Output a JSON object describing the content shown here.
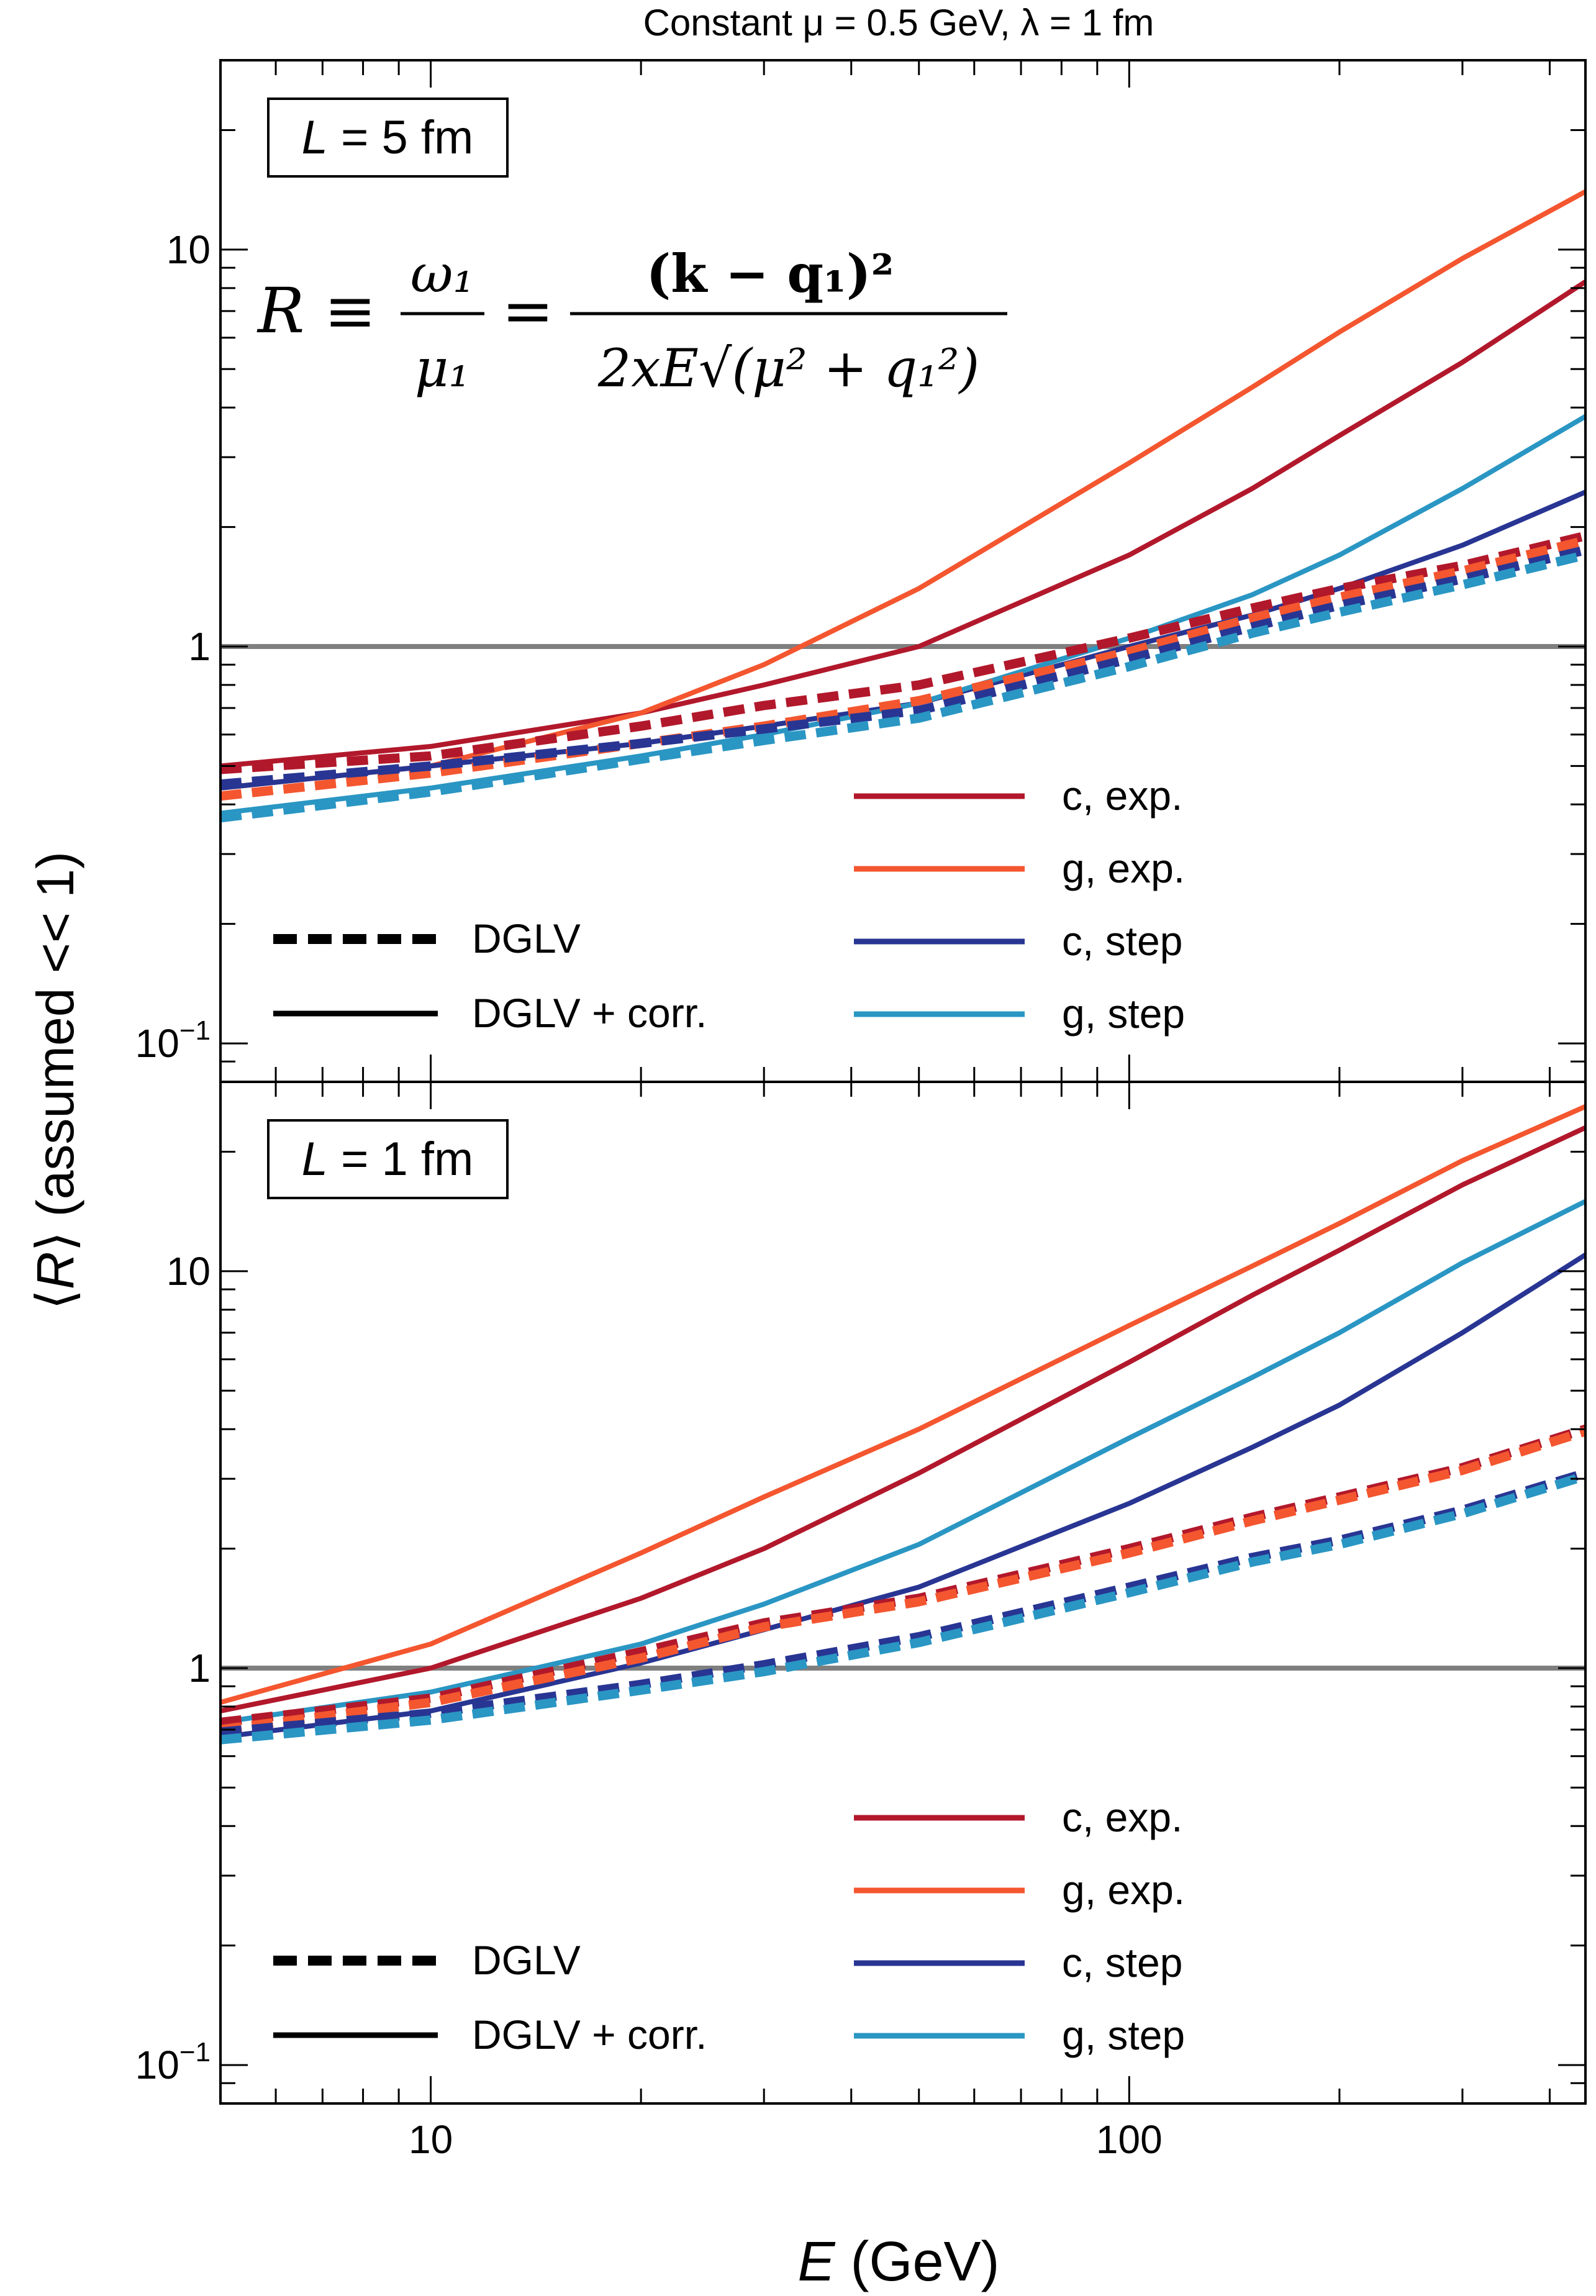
{
  "title": "Constant μ = 0.5 GeV, λ = 1 fm",
  "xlabel": {
    "italic": "E",
    "rest": " (GeV)"
  },
  "ylabel": {
    "pre": "⟨",
    "italic": "R",
    "post": "⟩ (assumed << 1)"
  },
  "x_ticks": [
    "10",
    "100"
  ],
  "y_ticks": {
    "ten": "10",
    "one": "1",
    "tenth_base": "10",
    "tenth_exp": "−1"
  },
  "formula": {
    "lhs": "R ≡",
    "num1": "ω₁",
    "den1": "μ₁",
    "eq": "=",
    "num2": "(k − q₁)²",
    "den2": "2xE√(μ² + q₁²)"
  },
  "legend_style": [
    {
      "label": "DGLV",
      "dash": true
    },
    {
      "label": "DGLV + corr.",
      "dash": false
    }
  ],
  "legend_series": [
    {
      "label": "c, exp.",
      "color": "#b2182b"
    },
    {
      "label": "g, exp.",
      "color": "#f4562f"
    },
    {
      "label": "c, step",
      "color": "#283593"
    },
    {
      "label": "g, step",
      "color": "#2a96c3"
    }
  ],
  "chart_data": [
    {
      "type": "line",
      "panel_label": {
        "italic": "L",
        "rest": " = 5 fm"
      },
      "x_scale": "log",
      "y_scale": "log",
      "xlim": [
        5,
        450
      ],
      "ylim": [
        0.08,
        30
      ],
      "reference_line": 1,
      "x": [
        5,
        10,
        20,
        30,
        50,
        100,
        150,
        200,
        300,
        450
      ],
      "series": [
        {
          "label": "c, exp.",
          "style": "DGLV + corr.",
          "color": "#b2182b",
          "values": [
            0.5,
            0.56,
            0.68,
            0.8,
            1.0,
            1.7,
            2.5,
            3.4,
            5.2,
            8.3
          ]
        },
        {
          "label": "g, exp.",
          "style": "DGLV + corr.",
          "color": "#f4562f",
          "values": [
            0.44,
            0.5,
            0.68,
            0.9,
            1.4,
            2.9,
            4.5,
            6.2,
            9.5,
            14
          ]
        },
        {
          "label": "c, step",
          "style": "DGLV + corr.",
          "color": "#283593",
          "values": [
            0.44,
            0.5,
            0.57,
            0.63,
            0.72,
            1.0,
            1.2,
            1.4,
            1.8,
            2.45
          ]
        },
        {
          "label": "g, step",
          "style": "DGLV + corr.",
          "color": "#2a96c3",
          "values": [
            0.38,
            0.44,
            0.53,
            0.6,
            0.72,
            1.05,
            1.35,
            1.7,
            2.5,
            3.8
          ]
        },
        {
          "label": "c, exp.",
          "style": "DGLV",
          "color": "#b2182b",
          "values": [
            0.49,
            0.53,
            0.63,
            0.71,
            0.8,
            1.05,
            1.25,
            1.4,
            1.6,
            1.9
          ]
        },
        {
          "label": "g, exp.",
          "style": "DGLV",
          "color": "#f4562f",
          "values": [
            0.42,
            0.48,
            0.57,
            0.63,
            0.73,
            0.97,
            1.18,
            1.33,
            1.55,
            1.85
          ]
        },
        {
          "label": "c, step",
          "style": "DGLV",
          "color": "#283593",
          "values": [
            0.45,
            0.5,
            0.57,
            0.62,
            0.69,
            0.93,
            1.12,
            1.27,
            1.48,
            1.75
          ]
        },
        {
          "label": "g, step",
          "style": "DGLV",
          "color": "#2a96c3",
          "values": [
            0.37,
            0.43,
            0.52,
            0.58,
            0.66,
            0.89,
            1.08,
            1.22,
            1.43,
            1.7
          ]
        }
      ]
    },
    {
      "type": "line",
      "panel_label": {
        "italic": "L",
        "rest": " = 1 fm"
      },
      "x_scale": "log",
      "y_scale": "log",
      "xlim": [
        5,
        450
      ],
      "ylim": [
        0.08,
        30
      ],
      "reference_line": 1,
      "x": [
        5,
        10,
        20,
        30,
        50,
        100,
        150,
        200,
        300,
        450
      ],
      "series": [
        {
          "label": "c, exp.",
          "style": "DGLV + corr.",
          "color": "#b2182b",
          "values": [
            0.78,
            1.0,
            1.5,
            2.0,
            3.1,
            5.9,
            8.7,
            11.3,
            16.5,
            23
          ]
        },
        {
          "label": "g, exp.",
          "style": "DGLV + corr.",
          "color": "#f4562f",
          "values": [
            0.82,
            1.15,
            1.95,
            2.7,
            4.0,
            7.3,
            10.3,
            13.2,
            19.0,
            26
          ]
        },
        {
          "label": "c, step",
          "style": "DGLV + corr.",
          "color": "#283593",
          "values": [
            0.67,
            0.78,
            1.03,
            1.25,
            1.6,
            2.6,
            3.6,
            4.6,
            7.0,
            11
          ]
        },
        {
          "label": "g, step",
          "style": "DGLV + corr.",
          "color": "#2a96c3",
          "values": [
            0.73,
            0.87,
            1.15,
            1.45,
            2.05,
            3.8,
            5.4,
            7.0,
            10.5,
            15
          ]
        },
        {
          "label": "c, exp.",
          "style": "DGLV",
          "color": "#b2182b",
          "values": [
            0.73,
            0.84,
            1.1,
            1.3,
            1.5,
            2.0,
            2.4,
            2.7,
            3.2,
            4.0
          ]
        },
        {
          "label": "g, exp.",
          "style": "DGLV",
          "color": "#f4562f",
          "values": [
            0.7,
            0.82,
            1.06,
            1.27,
            1.47,
            1.95,
            2.35,
            2.65,
            3.15,
            3.95
          ]
        },
        {
          "label": "c, step",
          "style": "DGLV",
          "color": "#283593",
          "values": [
            0.69,
            0.77,
            0.91,
            1.02,
            1.2,
            1.6,
            1.9,
            2.1,
            2.5,
            3.1
          ]
        },
        {
          "label": "g, step",
          "style": "DGLV",
          "color": "#2a96c3",
          "values": [
            0.66,
            0.74,
            0.88,
            0.98,
            1.16,
            1.55,
            1.85,
            2.05,
            2.45,
            3.05
          ]
        }
      ]
    }
  ]
}
